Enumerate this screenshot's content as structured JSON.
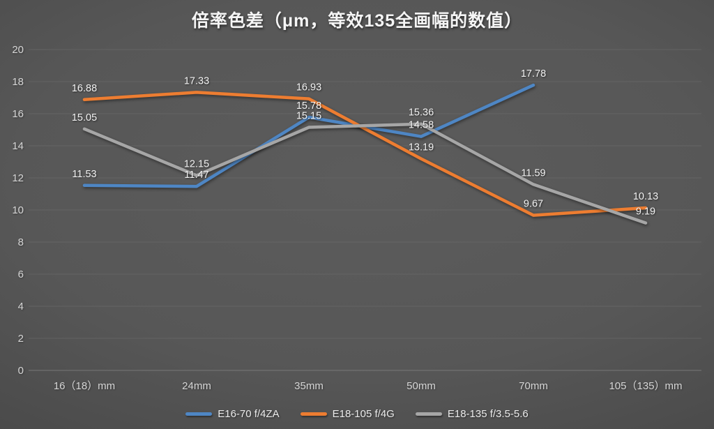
{
  "title": "倍率色差（μm，等效135全画幅的数值）",
  "colors": {
    "background_center": "#5a5a5a",
    "background_edge": "#2b2b2b",
    "gridline": "#6b6b6b",
    "axis_text": "#d6d6d6",
    "data_label_text": "#f2f2f2",
    "series_blue": "#4e86c4",
    "series_orange": "#ed7d31",
    "series_gray": "#a6a6a6"
  },
  "chart_data": {
    "type": "line",
    "title": "倍率色差（μm，等效135全画幅的数值）",
    "categories": [
      "16（18）mm",
      "24mm",
      "35mm",
      "50mm",
      "70mm",
      "105（135）mm"
    ],
    "series": [
      {
        "name": "E16-70 f/4ZA",
        "color": "#4e86c4",
        "values": [
          11.53,
          11.47,
          15.78,
          14.58,
          17.78,
          null
        ]
      },
      {
        "name": "E18-105 f/4G",
        "color": "#ed7d31",
        "values": [
          16.88,
          17.33,
          16.93,
          13.19,
          9.67,
          10.13
        ]
      },
      {
        "name": "E18-135 f/3.5-5.6",
        "color": "#a6a6a6",
        "values": [
          15.05,
          12.15,
          15.15,
          15.36,
          11.59,
          9.19
        ]
      }
    ],
    "ylim": [
      0,
      20
    ],
    "ytick_step": 2,
    "yticks": [
      0,
      2,
      4,
      6,
      8,
      10,
      12,
      14,
      16,
      18,
      20
    ],
    "grid": true,
    "data_labels": true,
    "legend_position": "bottom"
  }
}
